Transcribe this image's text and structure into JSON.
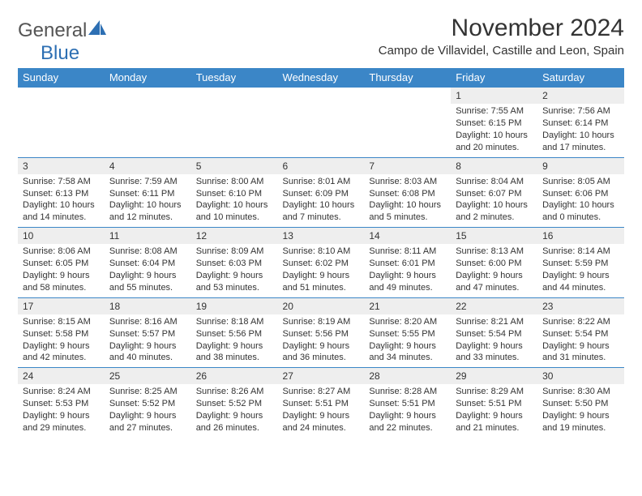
{
  "logo": {
    "text1": "General",
    "text2": "Blue"
  },
  "title": "November 2024",
  "location": "Campo de Villavidel, Castille and Leon, Spain",
  "colors": {
    "header_bg": "#3b86c7",
    "header_text": "#ffffff",
    "daynum_bg": "#eeeeee",
    "row_border": "#3b86c7",
    "logo_accent": "#2d6fb3",
    "body_text": "#333333",
    "background": "#ffffff"
  },
  "day_headers": [
    "Sunday",
    "Monday",
    "Tuesday",
    "Wednesday",
    "Thursday",
    "Friday",
    "Saturday"
  ],
  "weeks": [
    [
      null,
      null,
      null,
      null,
      null,
      {
        "n": "1",
        "sr": "Sunrise: 7:55 AM",
        "ss": "Sunset: 6:15 PM",
        "dl": "Daylight: 10 hours and 20 minutes."
      },
      {
        "n": "2",
        "sr": "Sunrise: 7:56 AM",
        "ss": "Sunset: 6:14 PM",
        "dl": "Daylight: 10 hours and 17 minutes."
      }
    ],
    [
      {
        "n": "3",
        "sr": "Sunrise: 7:58 AM",
        "ss": "Sunset: 6:13 PM",
        "dl": "Daylight: 10 hours and 14 minutes."
      },
      {
        "n": "4",
        "sr": "Sunrise: 7:59 AM",
        "ss": "Sunset: 6:11 PM",
        "dl": "Daylight: 10 hours and 12 minutes."
      },
      {
        "n": "5",
        "sr": "Sunrise: 8:00 AM",
        "ss": "Sunset: 6:10 PM",
        "dl": "Daylight: 10 hours and 10 minutes."
      },
      {
        "n": "6",
        "sr": "Sunrise: 8:01 AM",
        "ss": "Sunset: 6:09 PM",
        "dl": "Daylight: 10 hours and 7 minutes."
      },
      {
        "n": "7",
        "sr": "Sunrise: 8:03 AM",
        "ss": "Sunset: 6:08 PM",
        "dl": "Daylight: 10 hours and 5 minutes."
      },
      {
        "n": "8",
        "sr": "Sunrise: 8:04 AM",
        "ss": "Sunset: 6:07 PM",
        "dl": "Daylight: 10 hours and 2 minutes."
      },
      {
        "n": "9",
        "sr": "Sunrise: 8:05 AM",
        "ss": "Sunset: 6:06 PM",
        "dl": "Daylight: 10 hours and 0 minutes."
      }
    ],
    [
      {
        "n": "10",
        "sr": "Sunrise: 8:06 AM",
        "ss": "Sunset: 6:05 PM",
        "dl": "Daylight: 9 hours and 58 minutes."
      },
      {
        "n": "11",
        "sr": "Sunrise: 8:08 AM",
        "ss": "Sunset: 6:04 PM",
        "dl": "Daylight: 9 hours and 55 minutes."
      },
      {
        "n": "12",
        "sr": "Sunrise: 8:09 AM",
        "ss": "Sunset: 6:03 PM",
        "dl": "Daylight: 9 hours and 53 minutes."
      },
      {
        "n": "13",
        "sr": "Sunrise: 8:10 AM",
        "ss": "Sunset: 6:02 PM",
        "dl": "Daylight: 9 hours and 51 minutes."
      },
      {
        "n": "14",
        "sr": "Sunrise: 8:11 AM",
        "ss": "Sunset: 6:01 PM",
        "dl": "Daylight: 9 hours and 49 minutes."
      },
      {
        "n": "15",
        "sr": "Sunrise: 8:13 AM",
        "ss": "Sunset: 6:00 PM",
        "dl": "Daylight: 9 hours and 47 minutes."
      },
      {
        "n": "16",
        "sr": "Sunrise: 8:14 AM",
        "ss": "Sunset: 5:59 PM",
        "dl": "Daylight: 9 hours and 44 minutes."
      }
    ],
    [
      {
        "n": "17",
        "sr": "Sunrise: 8:15 AM",
        "ss": "Sunset: 5:58 PM",
        "dl": "Daylight: 9 hours and 42 minutes."
      },
      {
        "n": "18",
        "sr": "Sunrise: 8:16 AM",
        "ss": "Sunset: 5:57 PM",
        "dl": "Daylight: 9 hours and 40 minutes."
      },
      {
        "n": "19",
        "sr": "Sunrise: 8:18 AM",
        "ss": "Sunset: 5:56 PM",
        "dl": "Daylight: 9 hours and 38 minutes."
      },
      {
        "n": "20",
        "sr": "Sunrise: 8:19 AM",
        "ss": "Sunset: 5:56 PM",
        "dl": "Daylight: 9 hours and 36 minutes."
      },
      {
        "n": "21",
        "sr": "Sunrise: 8:20 AM",
        "ss": "Sunset: 5:55 PM",
        "dl": "Daylight: 9 hours and 34 minutes."
      },
      {
        "n": "22",
        "sr": "Sunrise: 8:21 AM",
        "ss": "Sunset: 5:54 PM",
        "dl": "Daylight: 9 hours and 33 minutes."
      },
      {
        "n": "23",
        "sr": "Sunrise: 8:22 AM",
        "ss": "Sunset: 5:54 PM",
        "dl": "Daylight: 9 hours and 31 minutes."
      }
    ],
    [
      {
        "n": "24",
        "sr": "Sunrise: 8:24 AM",
        "ss": "Sunset: 5:53 PM",
        "dl": "Daylight: 9 hours and 29 minutes."
      },
      {
        "n": "25",
        "sr": "Sunrise: 8:25 AM",
        "ss": "Sunset: 5:52 PM",
        "dl": "Daylight: 9 hours and 27 minutes."
      },
      {
        "n": "26",
        "sr": "Sunrise: 8:26 AM",
        "ss": "Sunset: 5:52 PM",
        "dl": "Daylight: 9 hours and 26 minutes."
      },
      {
        "n": "27",
        "sr": "Sunrise: 8:27 AM",
        "ss": "Sunset: 5:51 PM",
        "dl": "Daylight: 9 hours and 24 minutes."
      },
      {
        "n": "28",
        "sr": "Sunrise: 8:28 AM",
        "ss": "Sunset: 5:51 PM",
        "dl": "Daylight: 9 hours and 22 minutes."
      },
      {
        "n": "29",
        "sr": "Sunrise: 8:29 AM",
        "ss": "Sunset: 5:51 PM",
        "dl": "Daylight: 9 hours and 21 minutes."
      },
      {
        "n": "30",
        "sr": "Sunrise: 8:30 AM",
        "ss": "Sunset: 5:50 PM",
        "dl": "Daylight: 9 hours and 19 minutes."
      }
    ]
  ]
}
